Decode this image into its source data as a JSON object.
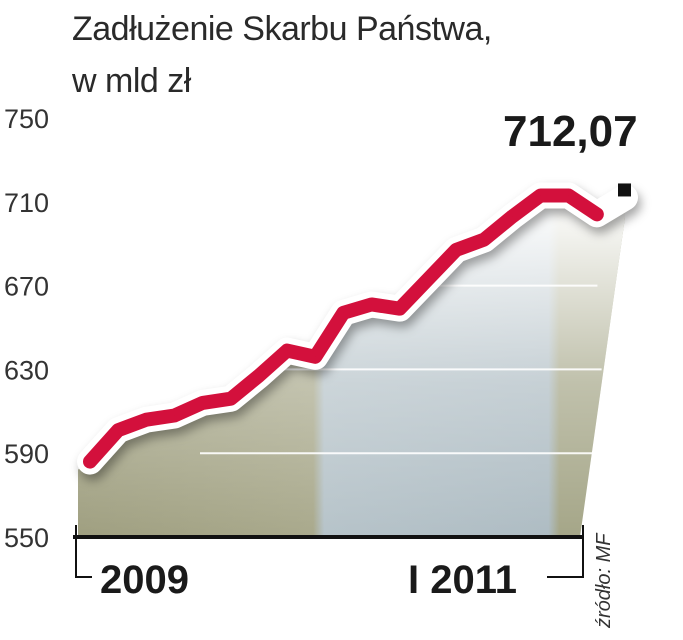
{
  "chart_data": {
    "type": "line",
    "title": "Zadłużenie Skarbu Państwa,",
    "subtitle": "w mld zł",
    "ylim": [
      550,
      750
    ],
    "yticks": [
      750,
      710,
      670,
      630,
      590,
      550
    ],
    "xtick_labels": [
      "2009",
      "I 2011"
    ],
    "values": [
      586,
      601,
      606,
      608,
      614,
      616,
      627,
      639,
      636,
      657,
      661,
      659,
      673,
      687,
      692,
      703,
      713,
      713,
      704,
      712.07
    ],
    "last_value_label": "712,07",
    "source": "źródło: MF",
    "grid": true,
    "colors": {
      "line": "#d3103c",
      "marker": "#111111",
      "area_left": "#a8a88a",
      "area_mid": "#b9c6cc"
    }
  }
}
